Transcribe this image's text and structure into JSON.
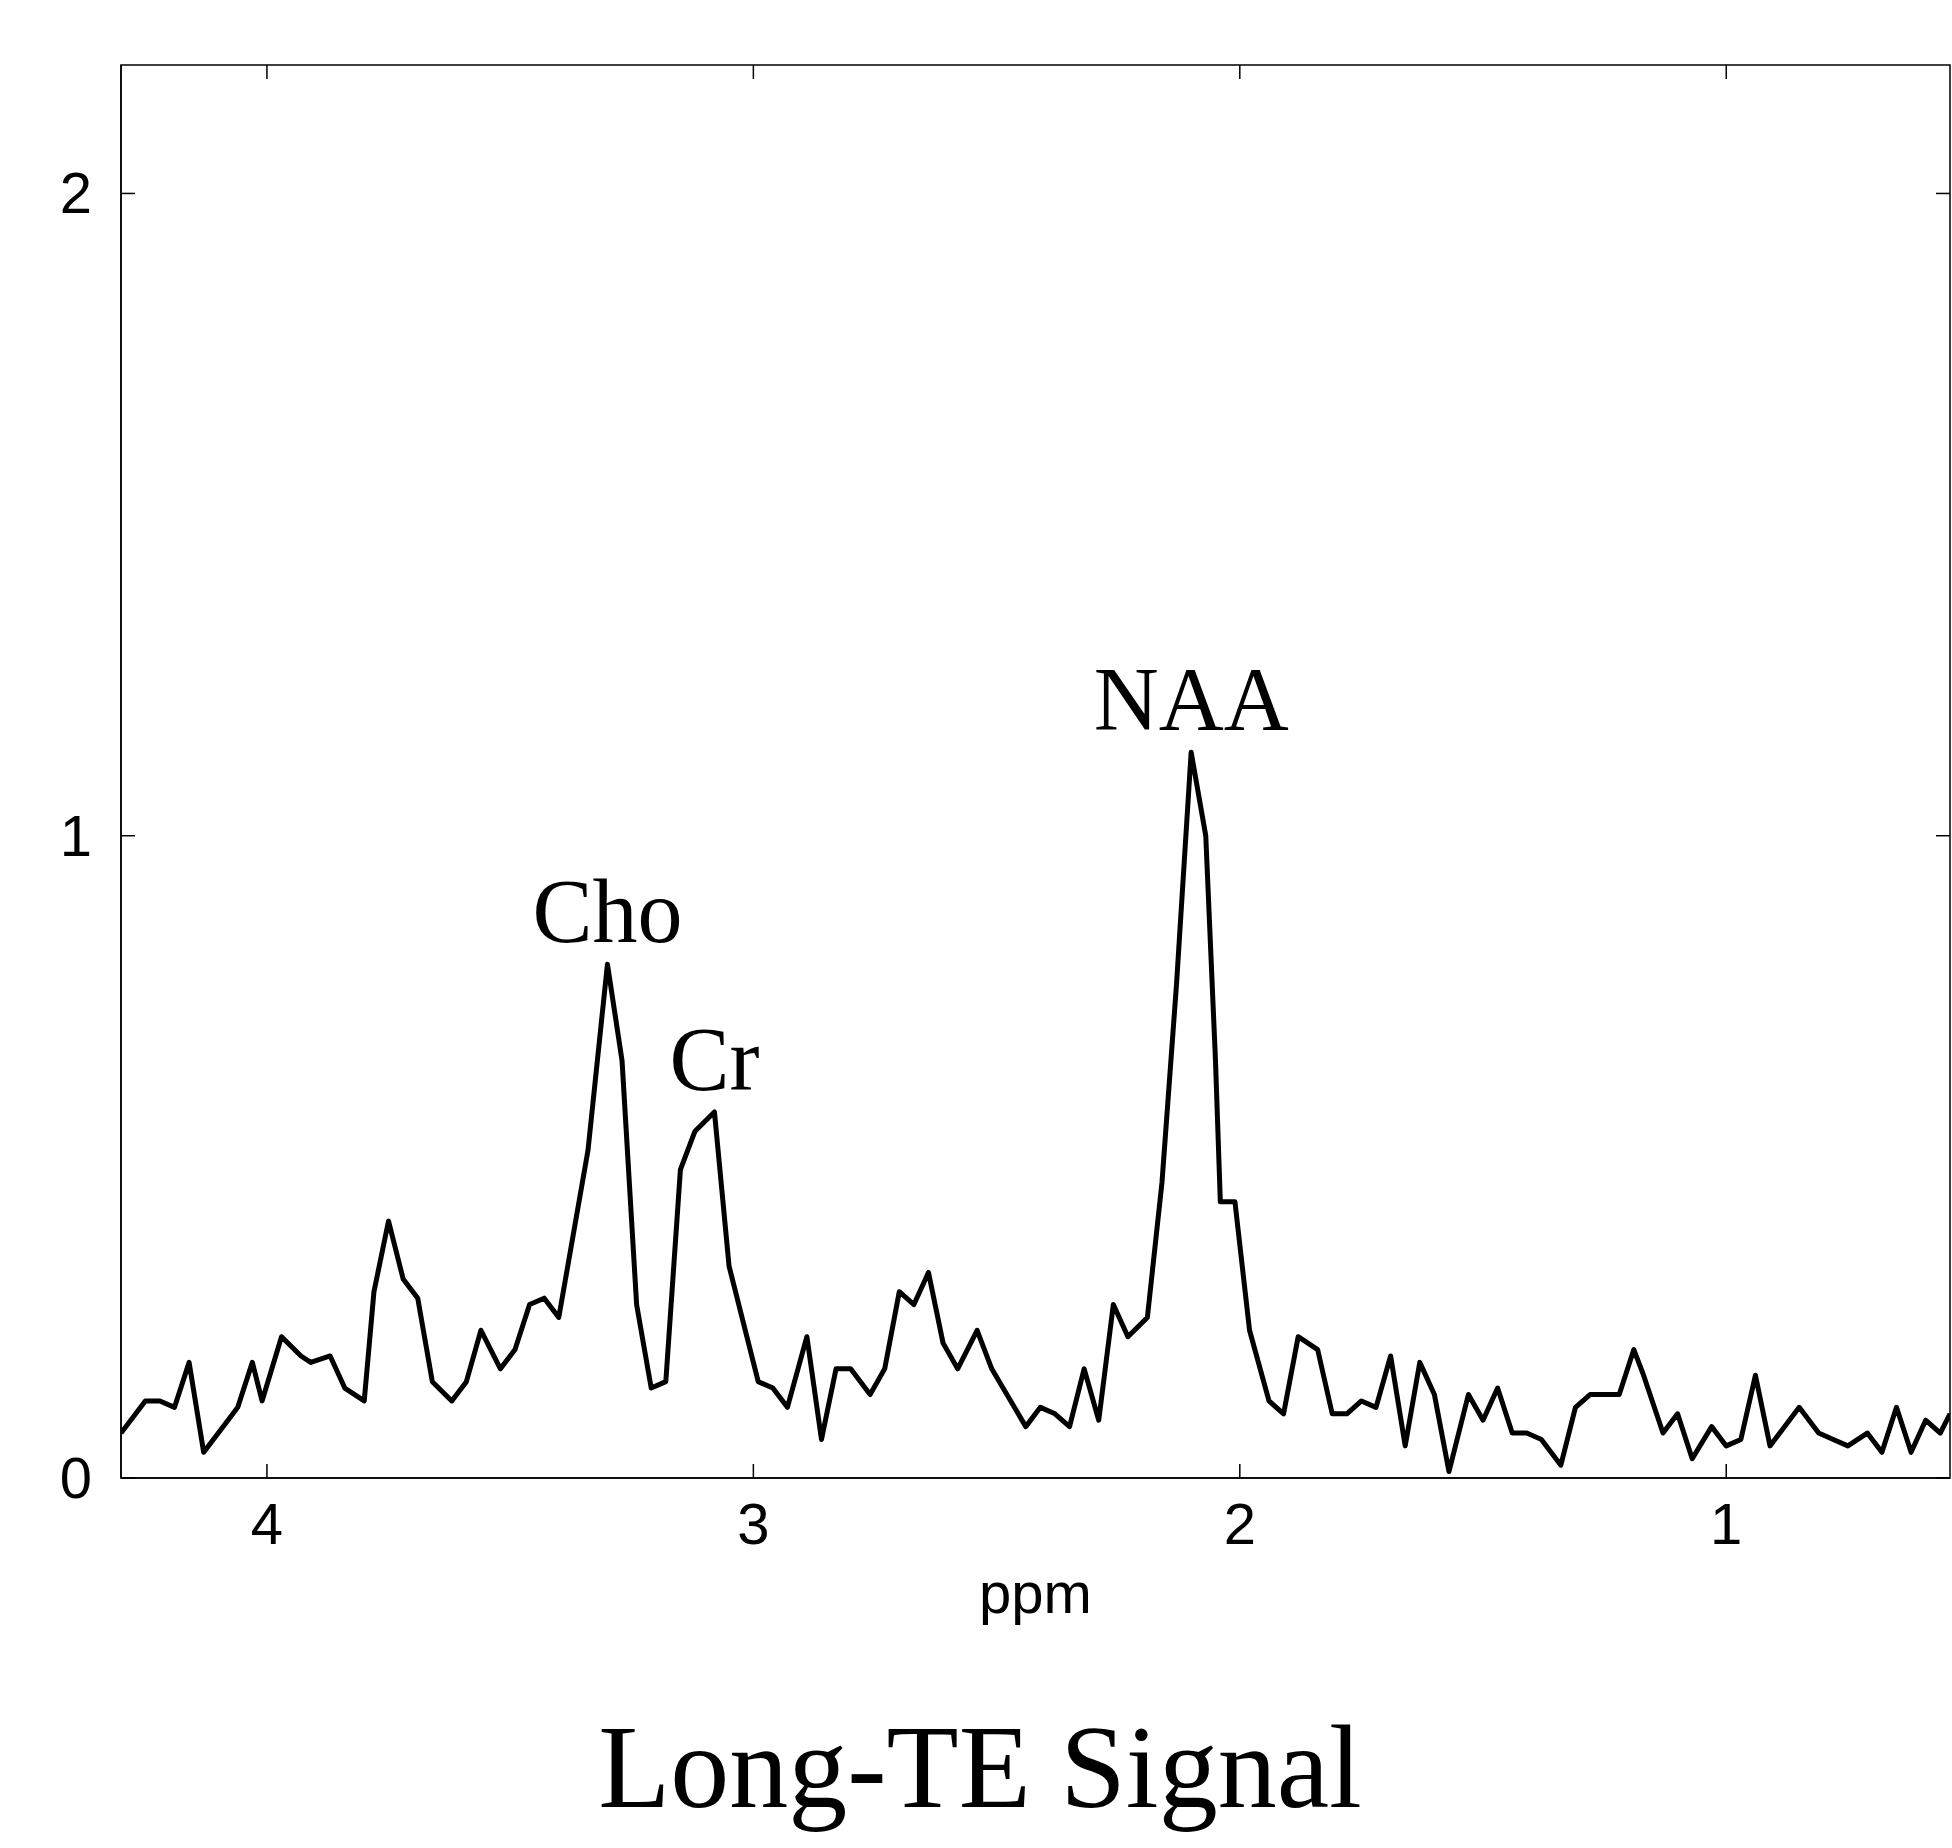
{
  "chart_data": {
    "type": "line",
    "title": "Long-TE Signal",
    "xlabel": "ppm",
    "x": [
      4.3,
      4.25,
      4.22,
      4.19,
      4.16,
      4.13,
      4.08,
      4.06,
      4.03,
      4.01,
      3.97,
      3.93,
      3.91,
      3.87,
      3.84,
      3.8,
      3.78,
      3.75,
      3.72,
      3.69,
      3.66,
      3.62,
      3.59,
      3.56,
      3.52,
      3.49,
      3.46,
      3.43,
      3.4,
      3.37,
      3.34,
      3.3,
      3.27,
      3.24,
      3.21,
      3.18,
      3.15,
      3.12,
      3.08,
      3.05,
      3.01,
      2.99,
      2.96,
      2.93,
      2.89,
      2.86,
      2.83,
      2.8,
      2.76,
      2.73,
      2.7,
      2.67,
      2.64,
      2.61,
      2.58,
      2.54,
      2.51,
      2.44,
      2.41,
      2.38,
      2.35,
      2.32,
      2.29,
      2.26,
      2.23,
      2.19,
      2.16,
      2.13,
      2.1,
      2.07,
      2.05,
      2.04,
      2.01,
      1.98,
      1.94,
      1.91,
      1.88,
      1.84,
      1.81,
      1.78,
      1.75,
      1.72,
      1.69,
      1.66,
      1.63,
      1.6,
      1.57,
      1.53,
      1.5,
      1.47,
      1.44,
      1.41,
      1.38,
      1.34,
      1.31,
      1.28,
      1.25,
      1.22,
      1.19,
      1.17,
      1.13,
      1.1,
      1.07,
      1.03,
      1.0,
      0.97,
      0.94,
      0.91,
      0.85,
      0.81,
      0.78,
      0.75,
      0.71,
      0.68,
      0.65,
      0.62,
      0.59,
      0.56,
      0.54
    ],
    "series": [
      {
        "color": "#000000",
        "values": [
          0.07,
          0.12,
          0.12,
          0.11,
          0.18,
          0.04,
          0.09,
          0.11,
          0.18,
          0.12,
          0.22,
          0.19,
          0.18,
          0.19,
          0.14,
          0.12,
          0.29,
          0.4,
          0.31,
          0.28,
          0.15,
          0.12,
          0.15,
          0.23,
          0.17,
          0.2,
          0.27,
          0.28,
          0.25,
          0.38,
          0.51,
          0.8,
          0.65,
          0.27,
          0.14,
          0.15,
          0.48,
          0.54,
          0.57,
          0.33,
          0.21,
          0.15,
          0.14,
          0.11,
          0.22,
          0.06,
          0.17,
          0.17,
          0.13,
          0.17,
          0.29,
          0.27,
          0.32,
          0.21,
          0.17,
          0.23,
          0.17,
          0.08,
          0.11,
          0.1,
          0.08,
          0.17,
          0.09,
          0.27,
          0.22,
          0.25,
          0.46,
          0.77,
          1.13,
          1.0,
          0.65,
          0.43,
          0.43,
          0.23,
          0.12,
          0.1,
          0.22,
          0.2,
          0.1,
          0.1,
          0.12,
          0.11,
          0.19,
          0.05,
          0.18,
          0.13,
          0.01,
          0.13,
          0.09,
          0.14,
          0.07,
          0.07,
          0.06,
          0.02,
          0.11,
          0.13,
          0.13,
          0.13,
          0.2,
          0.16,
          0.07,
          0.1,
          0.03,
          0.08,
          0.05,
          0.06,
          0.16,
          0.05,
          0.11,
          0.07,
          0.06,
          0.05,
          0.07,
          0.04,
          0.11,
          0.04,
          0.09,
          0.07,
          0.1
        ]
      }
    ],
    "xlim": [
      4.3,
      0.54
    ],
    "xticks": [
      4,
      3,
      2,
      1
    ],
    "ylim": [
      0,
      2.2
    ],
    "yticks": [
      0,
      1,
      2
    ],
    "grid": false,
    "marker": "none",
    "line_style": "solid",
    "annotations": [
      {
        "text": "Cho",
        "x": 3.3,
        "y": 0.8
      },
      {
        "text": "Cr",
        "x": 3.08,
        "y": 0.57
      },
      {
        "text": "NAA",
        "x": 2.1,
        "y": 1.13
      }
    ]
  }
}
